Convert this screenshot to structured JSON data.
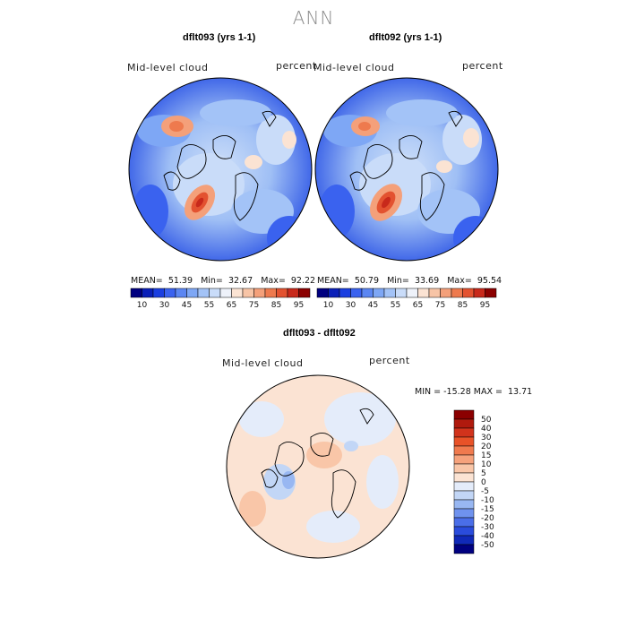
{
  "title": "ANN",
  "panels": [
    {
      "title": "dflt093 (yrs 1-1)",
      "variable_label": "Mid-level cloud",
      "units_label": "percent",
      "stats": {
        "mean_label": "MEAN=",
        "mean": "51.39",
        "min_label": "Min=",
        "min": "32.67",
        "max_label": "Max=",
        "max": "92.22"
      }
    },
    {
      "title": "dflt092 (yrs 1-1)",
      "variable_label": "Mid-level cloud",
      "units_label": "percent",
      "stats": {
        "mean_label": "MEAN=",
        "mean": "50.79",
        "min_label": "Min=",
        "min": "33.69",
        "max_label": "Max=",
        "max": "95.54"
      }
    }
  ],
  "colorbar_top": {
    "colors": [
      "#000080",
      "#0a1fb8",
      "#1a3ee0",
      "#3a62ef",
      "#5b86f2",
      "#7ea7f5",
      "#a3c3f7",
      "#c9dcf9",
      "#eef2fa",
      "#fbe3d3",
      "#f7c4a6",
      "#f4a07a",
      "#ee7a4e",
      "#e35230",
      "#c8291b",
      "#8b0000"
    ],
    "tick_labels": [
      "10",
      "30",
      "45",
      "55",
      "65",
      "75",
      "85",
      "95"
    ]
  },
  "diff_panel": {
    "title": "dflt093 - dflt092",
    "variable_label": "Mid-level cloud",
    "units_label": "percent",
    "minmax": {
      "min_label": "MIN =",
      "min": "-15.28",
      "max_label": "MAX =",
      "max": "13.71"
    }
  },
  "colorbar_diff": {
    "colors": [
      "#8b0000",
      "#b01a0e",
      "#d1331c",
      "#e85228",
      "#f07a4e",
      "#f6a27c",
      "#f9c6a8",
      "#fbe3d3",
      "#e4ecfa",
      "#c2d6f6",
      "#98b7f2",
      "#6f92ee",
      "#4a6ee8",
      "#2a4cdc",
      "#1029b8",
      "#000080"
    ],
    "tick_labels": [
      "50",
      "40",
      "30",
      "20",
      "15",
      "10",
      "5",
      "0",
      "-5",
      "-10",
      "-15",
      "-20",
      "-30",
      "-40",
      "-50"
    ]
  }
}
